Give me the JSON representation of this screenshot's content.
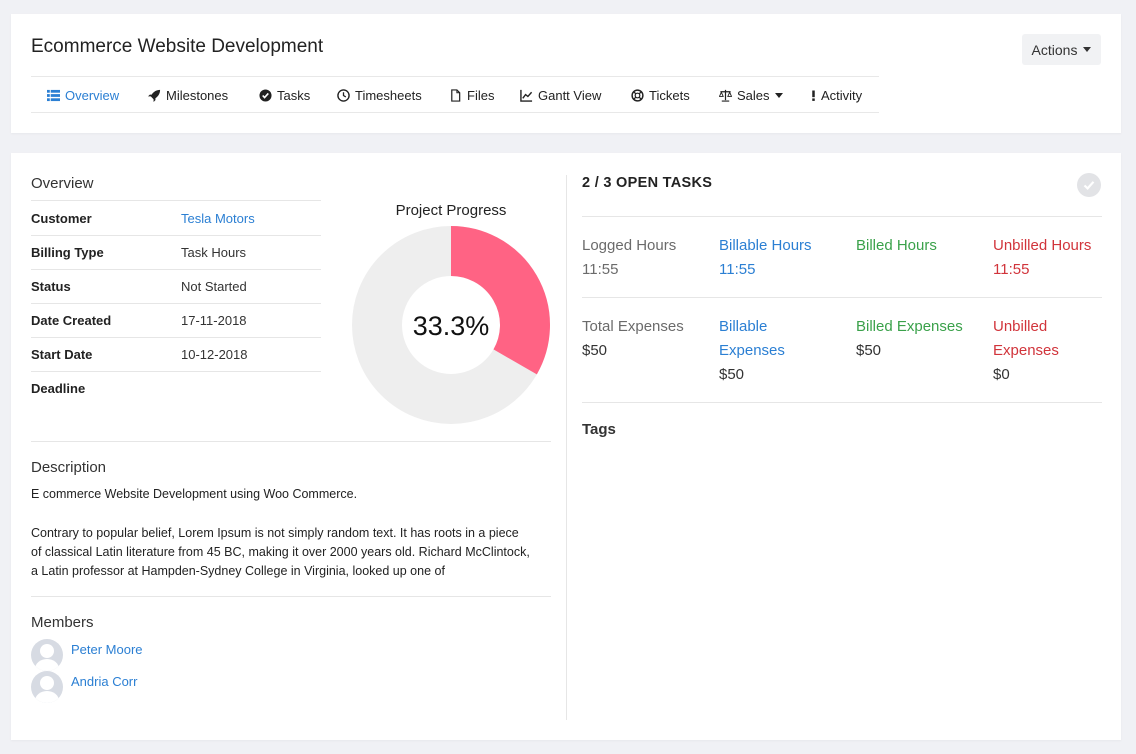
{
  "header": {
    "title": "Ecommerce Website Development",
    "actions_label": "Actions",
    "tabs": [
      {
        "label": "Overview",
        "icon": "list-icon"
      },
      {
        "label": "Milestones",
        "icon": "rocket-icon"
      },
      {
        "label": "Tasks",
        "icon": "check-circle-icon"
      },
      {
        "label": "Timesheets",
        "icon": "clock-icon"
      },
      {
        "label": "Files",
        "icon": "file-icon"
      },
      {
        "label": "Gantt View",
        "icon": "chart-line-icon"
      },
      {
        "label": "Tickets",
        "icon": "life-ring-icon"
      },
      {
        "label": "Sales",
        "icon": "balance-scale-icon"
      },
      {
        "label": "Activity",
        "icon": "exclamation-icon"
      }
    ]
  },
  "overview": {
    "title": "Overview",
    "rows": [
      {
        "label": "Customer",
        "value": "Tesla Motors"
      },
      {
        "label": "Billing Type",
        "value": "Task Hours"
      },
      {
        "label": "Status",
        "value": "Not Started"
      },
      {
        "label": "Date Created",
        "value": "17-11-2018"
      },
      {
        "label": "Start Date",
        "value": "10-12-2018"
      },
      {
        "label": "Deadline",
        "value": ""
      }
    ]
  },
  "progress": {
    "title": "Project Progress",
    "percent_label": "33.3%",
    "percent": 33.3,
    "fill_color": "#ff6384",
    "track_color": "#eeeeee"
  },
  "description": {
    "title": "Description",
    "line1": "E commerce Website Development using Woo Commerce.",
    "para": [
      "Contrary to popular belief, Lorem Ipsum is not simply random text. It has roots in a piece",
      "of classical Latin literature from 45 BC, making it over 2000 years old. Richard McClintock,",
      "a Latin professor at Hampden-Sydney College in Virginia, looked up one of"
    ]
  },
  "members": {
    "title": "Members",
    "list": [
      "Peter Moore",
      "Andria Corr"
    ]
  },
  "tasks": {
    "open_label": "2 / 3 OPEN TASKS"
  },
  "hours": {
    "logged": {
      "label": "Logged Hours",
      "value": "11:55"
    },
    "billable": {
      "label": "Billable Hours",
      "value": "11:55"
    },
    "billed": {
      "label": "Billed Hours",
      "value": ""
    },
    "unbilled": {
      "label": "Unbilled Hours",
      "value": "11:55"
    }
  },
  "expenses": {
    "total": {
      "label": "Total Expenses",
      "value": "$50"
    },
    "billable": {
      "label_line1": "Billable",
      "label_line2": "Expenses",
      "value": "$50"
    },
    "billed": {
      "label": "Billed Expenses",
      "value": "$50"
    },
    "unbilled": {
      "label_line1": "Unbilled",
      "label_line2": "Expenses",
      "value": "$0"
    }
  },
  "tags": {
    "title": "Tags"
  }
}
